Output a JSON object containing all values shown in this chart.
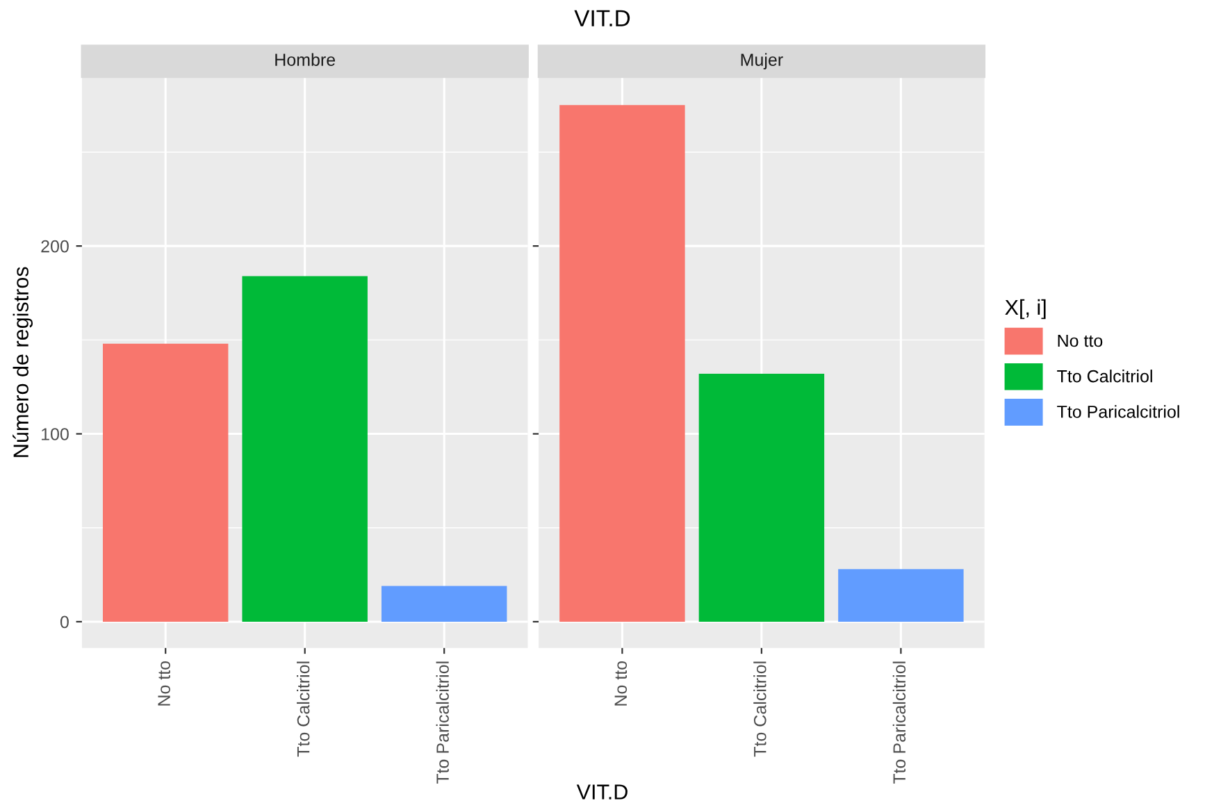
{
  "chart_data": [
    {
      "type": "bar",
      "subtitle": "Hombre",
      "ylabel": "Número de registros",
      "annotations": [
        "VIT.D",
        "VIT.D"
      ],
      "categories": [
        "No tto",
        "Tto Calcitriol",
        "Tto Paricalcitriol"
      ],
      "series": [
        {
          "color": "#f8766d",
          "values": [
            148,
            null,
            null
          ]
        },
        {
          "color": "#00ba38",
          "values": [
            null,
            184,
            null
          ]
        },
        {
          "color": "#619cff",
          "values": [
            null,
            null,
            19
          ]
        }
      ],
      "ylim": [
        -14,
        290
      ],
      "yticks": [
        0,
        {
          "value": 50,
          "label": null
        },
        100,
        {
          "value": 150,
          "label": null
        },
        200,
        {
          "value": 250,
          "label": null
        }
      ],
      "grid": true
    },
    {
      "type": "bar",
      "subtitle": "Mujer",
      "legend_title": "X[, i]",
      "legend": "right",
      "categories": [
        "No tto",
        "Tto Calcitriol",
        "Tto Paricalcitriol"
      ],
      "series": [
        {
          "name": "No tto",
          "color": "#f8766d",
          "values": [
            275,
            null,
            null
          ]
        },
        {
          "name": "Tto Calcitriol",
          "color": "#00ba38",
          "values": [
            null,
            132,
            null
          ]
        },
        {
          "name": "Tto Paricalcitriol",
          "color": "#619cff",
          "values": [
            null,
            null,
            28
          ]
        }
      ],
      "ylim": [
        -14,
        290
      ],
      "yticks": [
        0,
        {
          "value": 50,
          "label": null
        },
        100,
        {
          "value": 150,
          "label": null
        },
        200,
        {
          "value": 250,
          "label": null
        }
      ],
      "grid": true,
      "tick_labels": "x"
    }
  ]
}
